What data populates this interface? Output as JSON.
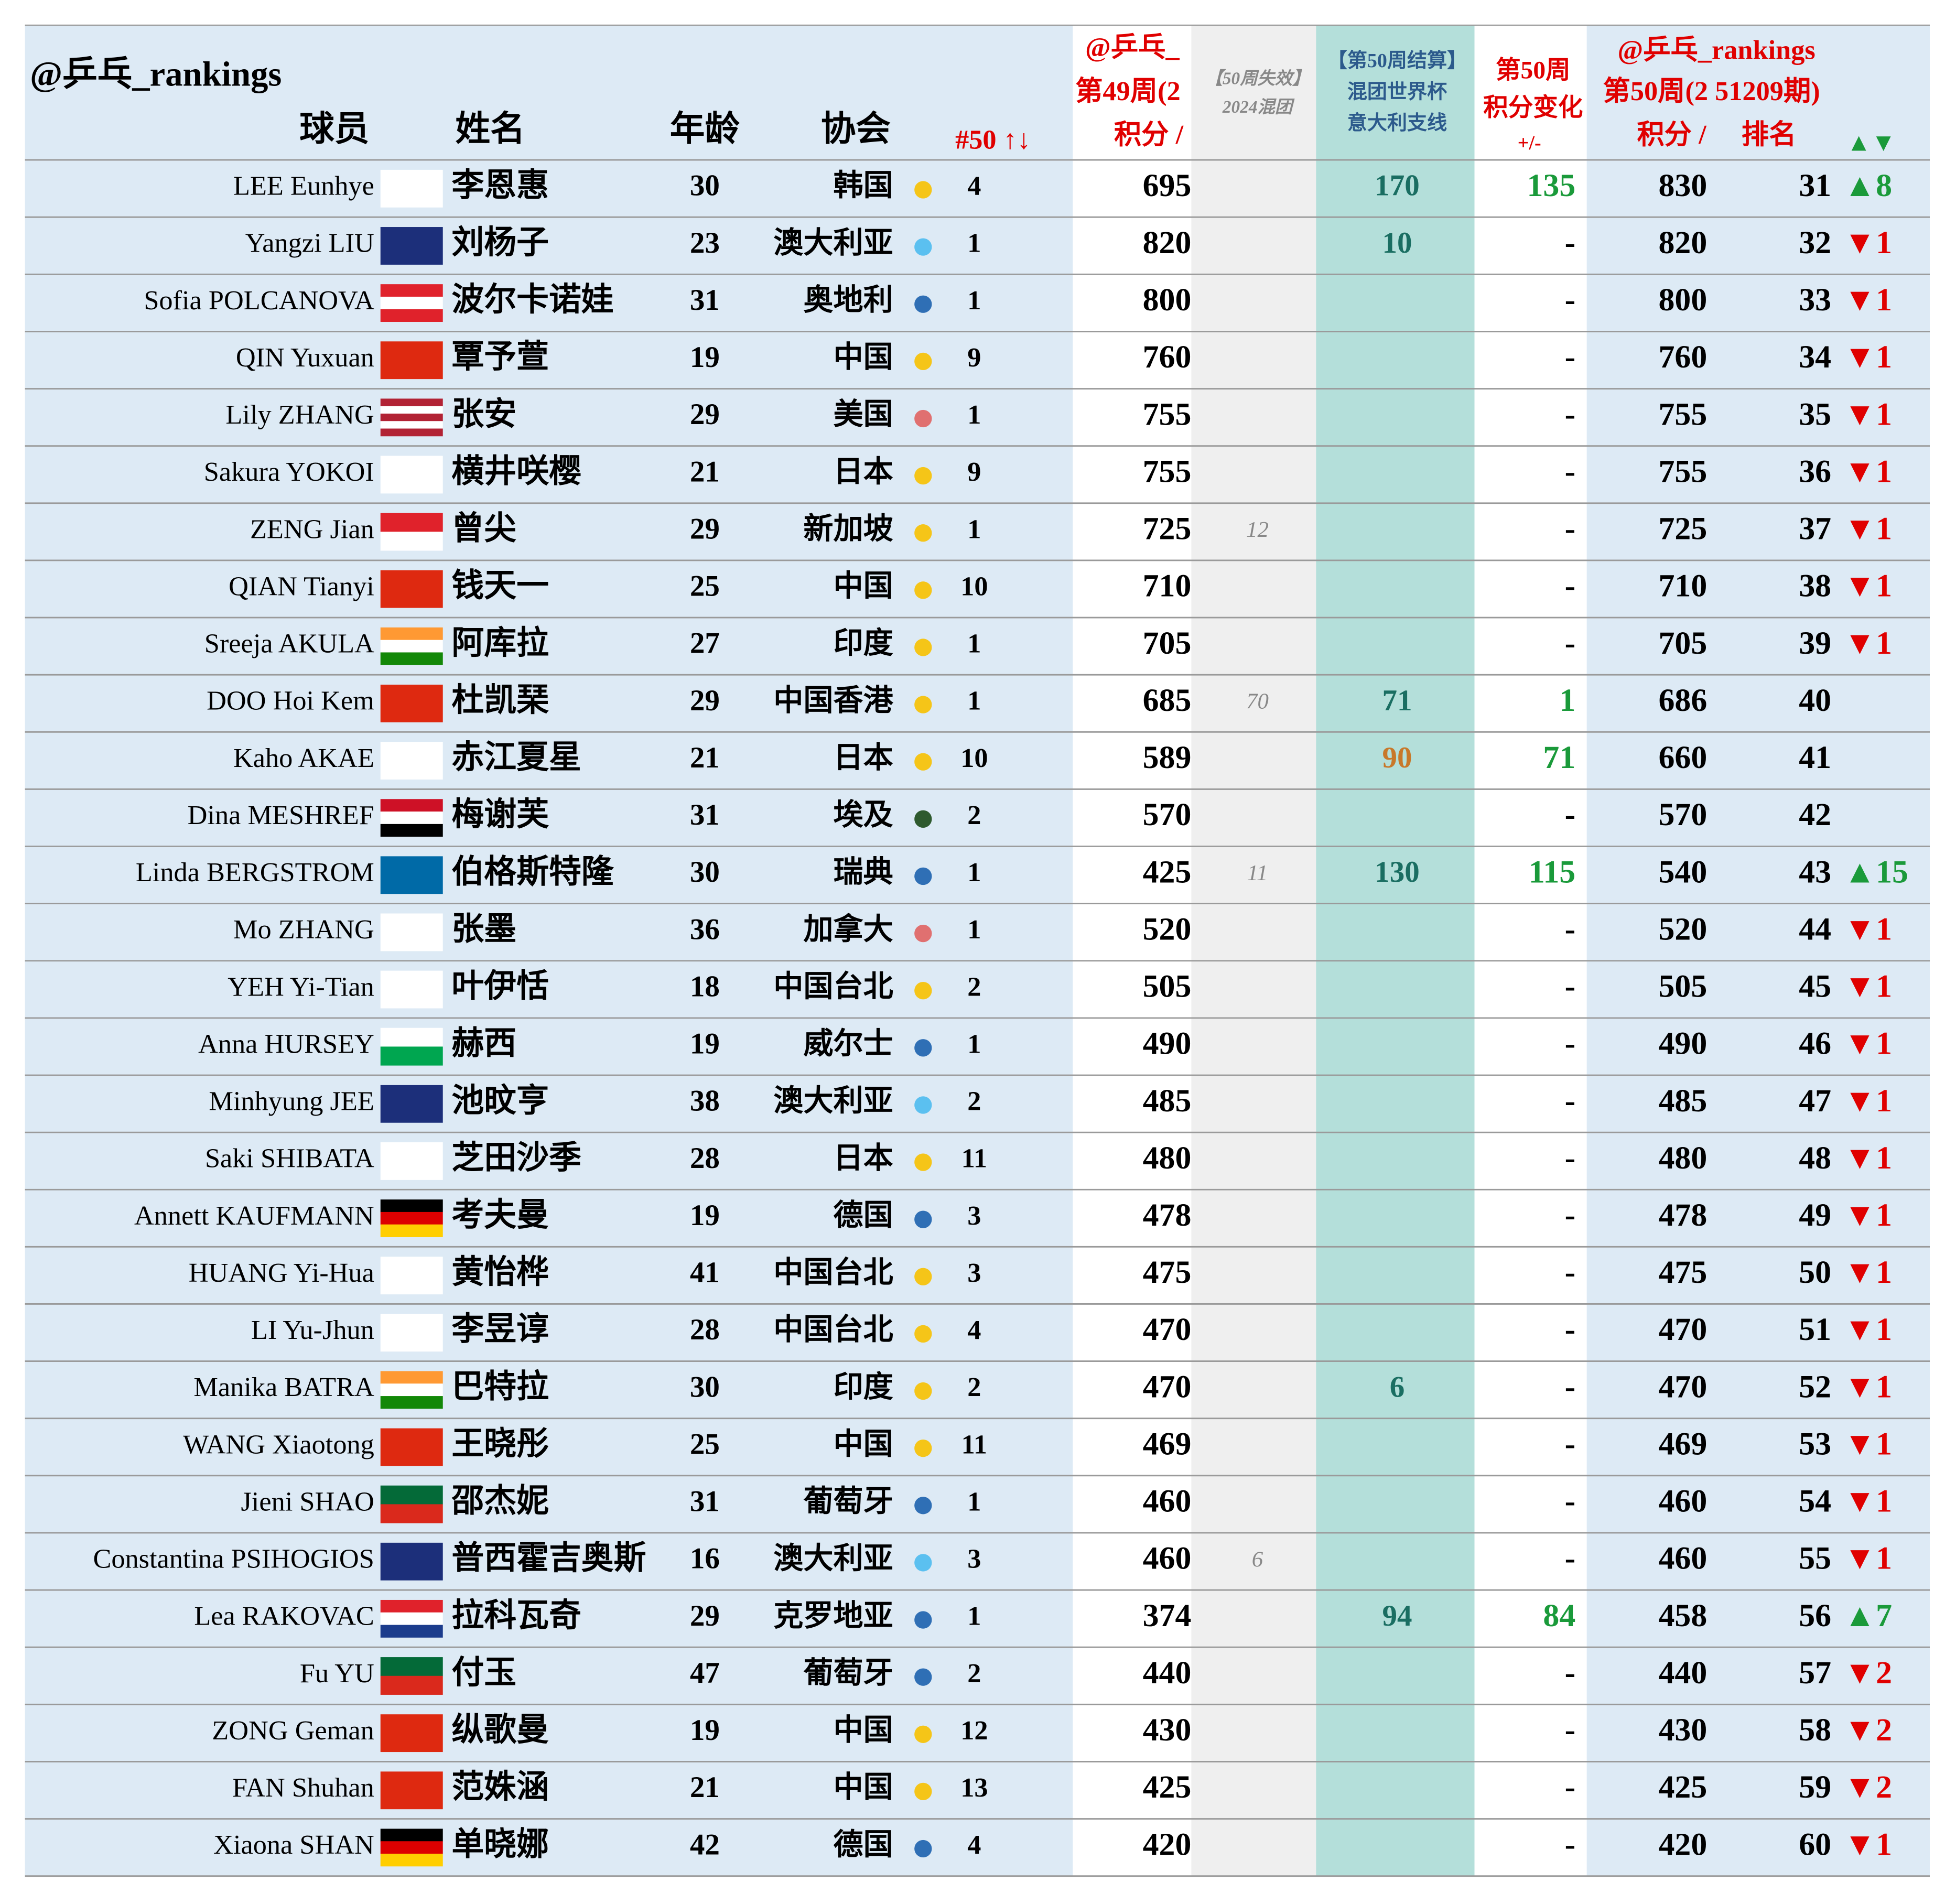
{
  "header": {
    "account": "@乒乓_rankings",
    "player": "球员",
    "name": "姓名",
    "age": "年龄",
    "assoc": "协会",
    "count": "#50 ↑↓",
    "w49": [
      "@乒乓_",
      "第49周(2",
      "积分 /"
    ],
    "expired": [
      "【50周失效】",
      "2024混团"
    ],
    "mixed": [
      "【第50周结算】",
      "混团世界杯",
      "意大利支线"
    ],
    "change": [
      "第50周",
      "积分变化",
      "+/-"
    ],
    "w50": [
      "@乒乓_rankings",
      "第50周(2 51209期)"
    ],
    "w50_points": "积分 /",
    "w50_rank": "排名",
    "w50_move": "▲▼"
  },
  "rows": [
    {
      "en": "LEE Eunhye",
      "cn": "李恩惠",
      "age": 30,
      "assoc": "韩国",
      "dot": "#f5c518",
      "count": 4,
      "w49": 695,
      "mixed": 170,
      "change": 135,
      "w50": 830,
      "rank": 31,
      "move": "▲8"
    },
    {
      "en": "Yangzi LIU",
      "cn": "刘杨子",
      "age": 23,
      "assoc": "澳大利亚",
      "dot": "#5bc0f0",
      "count": 1,
      "w49": 820,
      "mixed": 10,
      "change": "-",
      "w50": 820,
      "rank": 32,
      "move": "▼1"
    },
    {
      "en": "Sofia POLCANOVA",
      "cn": "波尔卡诺娃",
      "age": 31,
      "assoc": "奥地利",
      "dot": "#2f6fb5",
      "count": 1,
      "w49": 800,
      "change": "-",
      "w50": 800,
      "rank": 33,
      "move": "▼1"
    },
    {
      "en": "QIN Yuxuan",
      "cn": "覃予萱",
      "age": 19,
      "assoc": "中国",
      "dot": "#f5c518",
      "count": 9,
      "w49": 760,
      "change": "-",
      "w50": 760,
      "rank": 34,
      "move": "▼1"
    },
    {
      "en": "Lily ZHANG",
      "cn": "张安",
      "age": 29,
      "assoc": "美国",
      "dot": "#e07070",
      "count": 1,
      "w49": 755,
      "change": "-",
      "w50": 755,
      "rank": 35,
      "move": "▼1"
    },
    {
      "en": "Sakura YOKOI",
      "cn": "横井咲樱",
      "age": 21,
      "assoc": "日本",
      "dot": "#f5c518",
      "count": 9,
      "w49": 755,
      "change": "-",
      "w50": 755,
      "rank": 36,
      "move": "▼1"
    },
    {
      "en": "ZENG Jian",
      "cn": "曾尖",
      "age": 29,
      "assoc": "新加坡",
      "dot": "#f5c518",
      "count": 1,
      "w49": 725,
      "expired": 12,
      "change": "-",
      "w50": 725,
      "rank": 37,
      "move": "▼1"
    },
    {
      "en": "QIAN Tianyi",
      "cn": "钱天一",
      "age": 25,
      "assoc": "中国",
      "dot": "#f5c518",
      "count": 10,
      "w49": 710,
      "change": "-",
      "w50": 710,
      "rank": 38,
      "move": "▼1"
    },
    {
      "en": "Sreeja AKULA",
      "cn": "阿库拉",
      "age": 27,
      "assoc": "印度",
      "dot": "#f5c518",
      "count": 1,
      "w49": 705,
      "change": "-",
      "w50": 705,
      "rank": 39,
      "move": "▼1"
    },
    {
      "en": "DOO Hoi Kem",
      "cn": "杜凯琹",
      "age": 29,
      "assoc": "中国香港",
      "dot": "#f5c518",
      "count": 1,
      "w49": 685,
      "expired": 70,
      "mixed": 71,
      "change": 1,
      "w50": 686,
      "rank": 40
    },
    {
      "en": "Kaho AKAE",
      "cn": "赤江夏星",
      "age": 21,
      "assoc": "日本",
      "dot": "#f5c518",
      "count": 10,
      "w49": 589,
      "mixed": 90,
      "mixed_color": "#c8782a",
      "change": 71,
      "w50": 660,
      "rank": 41
    },
    {
      "en": "Dina MESHREF",
      "cn": "梅谢芙",
      "age": 31,
      "assoc": "埃及",
      "dot": "#2e5a2e",
      "count": 2,
      "w49": 570,
      "change": "-",
      "w50": 570,
      "rank": 42
    },
    {
      "en": "Linda BERGSTROM",
      "cn": "伯格斯特隆",
      "age": 30,
      "assoc": "瑞典",
      "dot": "#2f6fb5",
      "count": 1,
      "w49": 425,
      "expired": 11,
      "mixed": 130,
      "change": 115,
      "w50": 540,
      "rank": 43,
      "move": "▲15"
    },
    {
      "en": "Mo ZHANG",
      "cn": "张墨",
      "age": 36,
      "assoc": "加拿大",
      "dot": "#e07070",
      "count": 1,
      "w49": 520,
      "change": "-",
      "w50": 520,
      "rank": 44,
      "move": "▼1"
    },
    {
      "en": "YEH Yi-Tian",
      "cn": "叶伊恬",
      "age": 18,
      "assoc": "中国台北",
      "dot": "#f5c518",
      "count": 2,
      "w49": 505,
      "change": "-",
      "w50": 505,
      "rank": 45,
      "move": "▼1"
    },
    {
      "en": "Anna HURSEY",
      "cn": "赫西",
      "age": 19,
      "assoc": "威尔士",
      "dot": "#2f6fb5",
      "count": 1,
      "w49": 490,
      "change": "-",
      "w50": 490,
      "rank": 46,
      "move": "▼1"
    },
    {
      "en": "Minhyung JEE",
      "cn": "池旼亨",
      "age": 38,
      "assoc": "澳大利亚",
      "dot": "#5bc0f0",
      "count": 2,
      "w49": 485,
      "change": "-",
      "w50": 485,
      "rank": 47,
      "move": "▼1"
    },
    {
      "en": "Saki SHIBATA",
      "cn": "芝田沙季",
      "age": 28,
      "assoc": "日本",
      "dot": "#f5c518",
      "count": 11,
      "w49": 480,
      "change": "-",
      "w50": 480,
      "rank": 48,
      "move": "▼1"
    },
    {
      "en": "Annett KAUFMANN",
      "cn": "考夫曼",
      "age": 19,
      "assoc": "德国",
      "dot": "#2f6fb5",
      "count": 3,
      "w49": 478,
      "change": "-",
      "w50": 478,
      "rank": 49,
      "move": "▼1"
    },
    {
      "en": "HUANG Yi-Hua",
      "cn": "黄怡桦",
      "age": 41,
      "assoc": "中国台北",
      "dot": "#f5c518",
      "count": 3,
      "w49": 475,
      "change": "-",
      "w50": 475,
      "rank": 50,
      "move": "▼1"
    },
    {
      "en": "LI Yu-Jhun",
      "cn": "李昱谆",
      "age": 28,
      "assoc": "中国台北",
      "dot": "#f5c518",
      "count": 4,
      "w49": 470,
      "change": "-",
      "w50": 470,
      "rank": 51,
      "move": "▼1"
    },
    {
      "en": "Manika BATRA",
      "cn": "巴特拉",
      "age": 30,
      "assoc": "印度",
      "dot": "#f5c518",
      "count": 2,
      "w49": 470,
      "mixed": 6,
      "change": "-",
      "w50": 470,
      "rank": 52,
      "move": "▼1"
    },
    {
      "en": "WANG Xiaotong",
      "cn": "王晓彤",
      "age": 25,
      "assoc": "中国",
      "dot": "#f5c518",
      "count": 11,
      "w49": 469,
      "change": "-",
      "w50": 469,
      "rank": 53,
      "move": "▼1"
    },
    {
      "en": "Jieni SHAO",
      "cn": "邵杰妮",
      "age": 31,
      "assoc": "葡萄牙",
      "dot": "#2f6fb5",
      "count": 1,
      "w49": 460,
      "change": "-",
      "w50": 460,
      "rank": 54,
      "move": "▼1"
    },
    {
      "en": "Constantina PSIHOGIOS",
      "cn": "普西霍吉奥斯",
      "age": 16,
      "assoc": "澳大利亚",
      "dot": "#5bc0f0",
      "count": 3,
      "w49": 460,
      "expired": 6,
      "change": "-",
      "w50": 460,
      "rank": 55,
      "move": "▼1"
    },
    {
      "en": "Lea RAKOVAC",
      "cn": "拉科瓦奇",
      "age": 29,
      "assoc": "克罗地亚",
      "dot": "#2f6fb5",
      "count": 1,
      "w49": 374,
      "mixed": 94,
      "change": 84,
      "w50": 458,
      "rank": 56,
      "move": "▲7"
    },
    {
      "en": "Fu YU",
      "cn": "付玉",
      "age": 47,
      "assoc": "葡萄牙",
      "dot": "#2f6fb5",
      "count": 2,
      "w49": 440,
      "change": "-",
      "w50": 440,
      "rank": 57,
      "move": "▼2"
    },
    {
      "en": "ZONG Geman",
      "cn": "纵歌曼",
      "age": 19,
      "assoc": "中国",
      "dot": "#f5c518",
      "count": 12,
      "w49": 430,
      "change": "-",
      "w50": 430,
      "rank": 58,
      "move": "▼2"
    },
    {
      "en": "FAN Shuhan",
      "cn": "范姝涵",
      "age": 21,
      "assoc": "中国",
      "dot": "#f5c518",
      "count": 13,
      "w49": 425,
      "change": "-",
      "w50": 425,
      "rank": 59,
      "move": "▼2"
    },
    {
      "en": "Xiaona SHAN",
      "cn": "单晓娜",
      "age": 42,
      "assoc": "德国",
      "dot": "#2f6fb5",
      "count": 4,
      "w49": 420,
      "change": "-",
      "w50": 420,
      "rank": 60,
      "move": "▼1"
    }
  ]
}
